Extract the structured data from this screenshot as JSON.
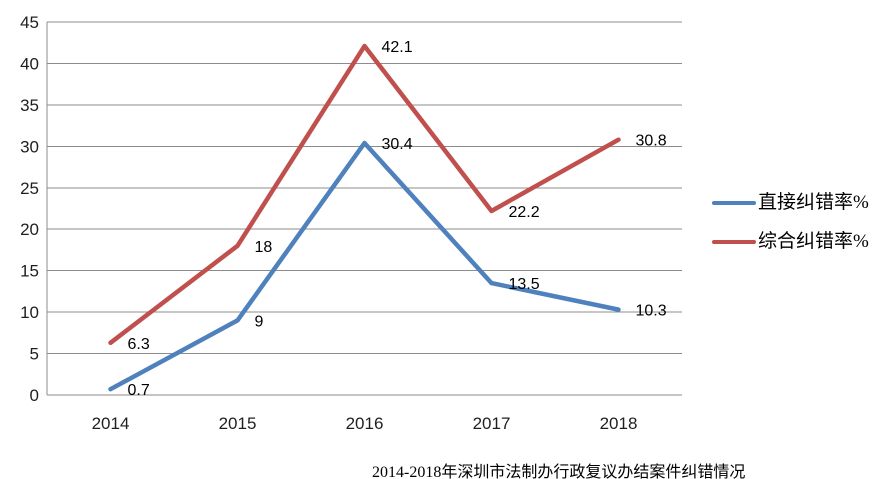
{
  "chart_data": {
    "type": "line",
    "title": "2014-2018年深圳市法制办行政复议办结案件纠错情况",
    "categories": [
      "2014",
      "2015",
      "2016",
      "2017",
      "2018"
    ],
    "series": [
      {
        "name": "直接纠错率%",
        "color": "#4F81BD",
        "values": [
          0.7,
          9,
          30.4,
          13.5,
          10.3
        ],
        "labels": [
          "0.7",
          "9",
          "30.4",
          "13.5",
          "10.3"
        ]
      },
      {
        "name": "综合纠错率%",
        "color": "#C0504D",
        "values": [
          6.3,
          18,
          42.1,
          22.2,
          30.8
        ],
        "labels": [
          "6.3",
          "18",
          "42.1",
          "22.2",
          "30.8"
        ]
      }
    ],
    "xlabel": "",
    "ylabel": "",
    "ylim": [
      0,
      45
    ],
    "yticks": [
      0,
      5,
      10,
      15,
      20,
      25,
      30,
      35,
      40,
      45
    ],
    "grid": true,
    "grid_color": "#8C8C8C",
    "legend_position": "right"
  }
}
